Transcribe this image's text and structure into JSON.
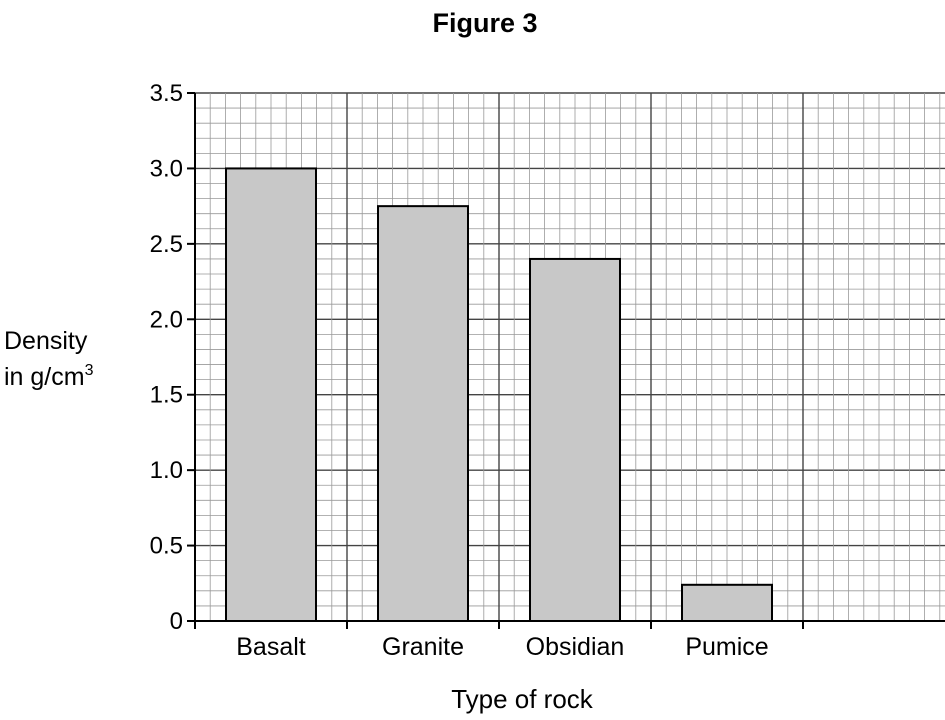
{
  "chart_data": {
    "type": "bar",
    "title": "Figure 3",
    "ylabel_line1": "Density",
    "ylabel_line2": "in g/cm",
    "ylabel_sup": "3",
    "xlabel": "Type of rock",
    "categories": [
      "Basalt",
      "Granite",
      "Obsidian",
      "Pumice"
    ],
    "values": [
      3.0,
      2.75,
      2.4,
      0.24
    ],
    "ylim": [
      0,
      3.5
    ],
    "yticks": [
      "0",
      "0.5",
      "1.0",
      "1.5",
      "2.0",
      "2.5",
      "3.0",
      "3.5"
    ],
    "grid": true,
    "bar_color": "#c8c8c8"
  }
}
